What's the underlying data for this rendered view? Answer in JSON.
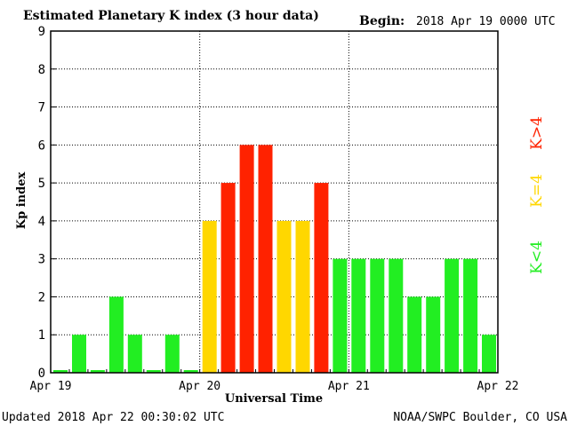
{
  "header": {
    "title": "Estimated Planetary K index (3 hour data)",
    "begin_label": "Begin:",
    "begin_value": "2018 Apr 19 0000 UTC"
  },
  "footer": {
    "updated": "Updated 2018 Apr 22 00:30:02 UTC",
    "source": "NOAA/SWPC Boulder, CO USA"
  },
  "legend": {
    "high": "K>4",
    "equal": "K=4",
    "low": "K<4"
  },
  "colors": {
    "low": "#22ee22",
    "equal": "#ffd700",
    "high": "#ff2200"
  },
  "chart_data": {
    "type": "bar",
    "title": "Estimated Planetary K index (3 hour data)",
    "xlabel": "Universal Time",
    "ylabel": "Kp index",
    "ylim": [
      0,
      9
    ],
    "yticks": [
      "0",
      "1",
      "2",
      "3",
      "4",
      "5",
      "6",
      "7",
      "8",
      "9"
    ],
    "xticks": [
      "Apr 19",
      "Apr 20",
      "Apr 21",
      "Apr 22"
    ],
    "grid": true,
    "interval_hours": 3,
    "values": [
      0,
      1,
      0,
      2,
      1,
      0,
      1,
      0,
      4,
      5,
      6,
      6,
      4,
      4,
      5,
      3,
      3,
      3,
      3,
      2,
      2,
      3,
      3,
      1
    ]
  }
}
